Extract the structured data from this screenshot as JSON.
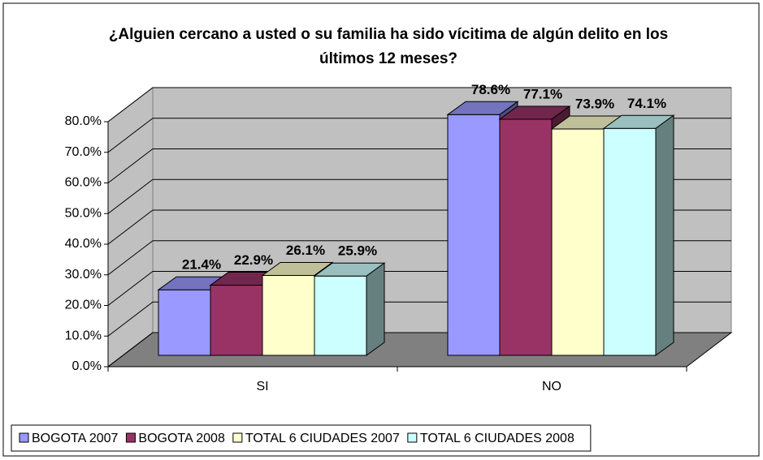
{
  "chart_data": {
    "type": "bar3d",
    "title": "¿Alguien cercano a usted o su familia ha sido vícitima de algún delito en los últimos 12 meses?",
    "categories": [
      "SI",
      "NO"
    ],
    "series": [
      {
        "name": "BOGOTA 2007",
        "color": "#9999ff",
        "values": [
          21.4,
          78.6
        ],
        "value_labels": [
          "21.4%",
          "78.6%"
        ]
      },
      {
        "name": "BOGOTA 2008",
        "color": "#993366",
        "values": [
          22.9,
          77.1
        ],
        "value_labels": [
          "22.9%",
          "77.1%"
        ]
      },
      {
        "name": "TOTAL 6 CIUDADES 2007",
        "color": "#ffffcc",
        "values": [
          26.1,
          73.9
        ],
        "value_labels": [
          "26.1%",
          "73.9%"
        ]
      },
      {
        "name": "TOTAL 6 CIUDADES 2008",
        "color": "#ccffff",
        "values": [
          25.9,
          74.1
        ],
        "value_labels": [
          "25.9%",
          "74.1%"
        ]
      }
    ],
    "ylim": [
      0,
      80
    ],
    "yticks": [
      {
        "value": 0,
        "label": "0.0%"
      },
      {
        "value": 10,
        "label": "10.0%"
      },
      {
        "value": 20,
        "label": "20.0%"
      },
      {
        "value": 30,
        "label": "30.0%"
      },
      {
        "value": 40,
        "label": "40.0%"
      },
      {
        "value": 50,
        "label": "50.0%"
      },
      {
        "value": 60,
        "label": "60.0%"
      },
      {
        "value": 70,
        "label": "70.0%"
      },
      {
        "value": 80,
        "label": "80.0%"
      }
    ],
    "grid": true,
    "legend": "bottom"
  }
}
